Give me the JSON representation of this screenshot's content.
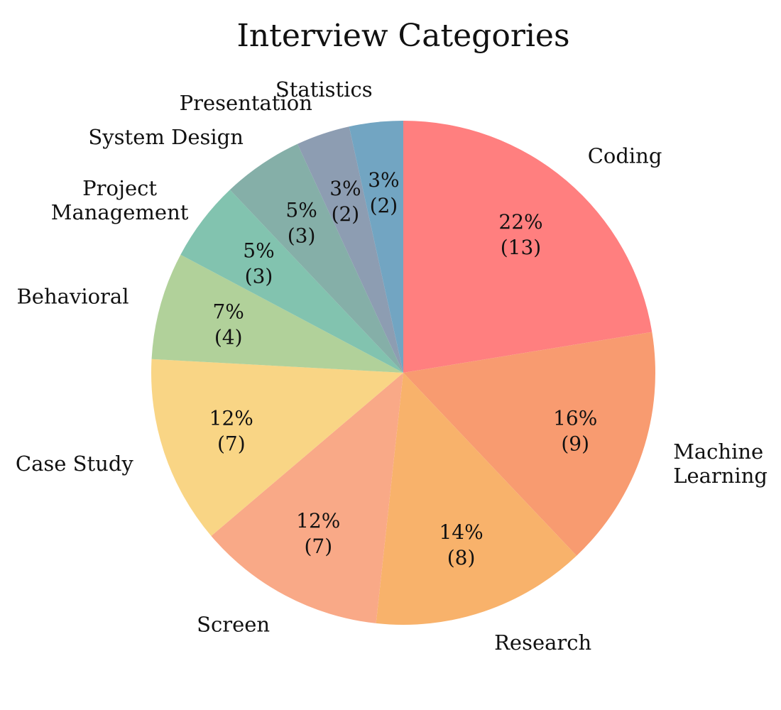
{
  "chart_data": {
    "type": "pie",
    "title": "Interview Categories",
    "start_angle_deg": 90,
    "direction": "clockwise",
    "slices": [
      {
        "label": "Coding",
        "label_lines": [
          "Coding"
        ],
        "value": 13,
        "percent_label": "22%",
        "count_label": "(13)",
        "color": "#FF7F7F"
      },
      {
        "label": "Machine Learning",
        "label_lines": [
          "Machine",
          "Learning"
        ],
        "value": 9,
        "percent_label": "16%",
        "count_label": "(9)",
        "color": "#F89B70"
      },
      {
        "label": "Research",
        "label_lines": [
          "Research"
        ],
        "value": 8,
        "percent_label": "14%",
        "count_label": "(8)",
        "color": "#F8B26B"
      },
      {
        "label": "Screen",
        "label_lines": [
          "Screen"
        ],
        "value": 7,
        "percent_label": "12%",
        "count_label": "(7)",
        "color": "#F9A987"
      },
      {
        "label": "Case Study",
        "label_lines": [
          "Case Study"
        ],
        "value": 7,
        "percent_label": "12%",
        "count_label": "(7)",
        "color": "#F9D585"
      },
      {
        "label": "Behavioral",
        "label_lines": [
          "Behavioral"
        ],
        "value": 4,
        "percent_label": "7%",
        "count_label": "(4)",
        "color": "#B1D19A"
      },
      {
        "label": "Project Management",
        "label_lines": [
          "Project",
          "Management"
        ],
        "value": 3,
        "percent_label": "5%",
        "count_label": "(3)",
        "color": "#82C3AF"
      },
      {
        "label": "System Design",
        "label_lines": [
          "System Design"
        ],
        "value": 3,
        "percent_label": "5%",
        "count_label": "(3)",
        "color": "#85AFA8"
      },
      {
        "label": "Presentation",
        "label_lines": [
          "Presentation"
        ],
        "value": 2,
        "percent_label": "3%",
        "count_label": "(2)",
        "color": "#8D9DB2"
      },
      {
        "label": "Statistics",
        "label_lines": [
          "Statistics"
        ],
        "value": 2,
        "percent_label": "3%",
        "count_label": "(2)",
        "color": "#72A5C2"
      }
    ]
  }
}
